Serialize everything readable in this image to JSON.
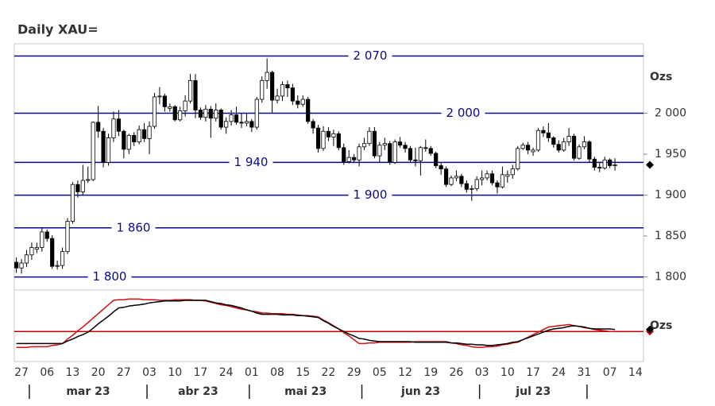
{
  "chart_data": [
    {
      "type": "candlestick",
      "title": "Daily XAU=",
      "y_unit": "Ozs",
      "categories": [
        null,
        "27",
        null,
        null,
        null,
        null,
        "06",
        null,
        null,
        null,
        null,
        "13",
        null,
        null,
        null,
        null,
        "20",
        null,
        null,
        null,
        null,
        "27",
        null,
        null,
        null,
        null,
        "03",
        null,
        null,
        null,
        null,
        "10",
        null,
        null,
        null,
        null,
        "17",
        null,
        null,
        null,
        null,
        "24",
        null,
        null,
        null,
        null,
        "01",
        null,
        null,
        null,
        null,
        "08",
        null,
        null,
        null,
        null,
        "15",
        null,
        null,
        null,
        null,
        "22",
        null,
        null,
        null,
        null,
        "29",
        null,
        null,
        null,
        null,
        "05",
        null,
        null,
        null,
        null,
        "12",
        null,
        null,
        null,
        null,
        "19",
        null,
        null,
        null,
        null,
        "26",
        null,
        null,
        null,
        null,
        "03",
        null,
        null,
        null,
        null,
        "10",
        null,
        null,
        null,
        null,
        "17",
        null,
        null,
        null,
        null,
        "24",
        null,
        null,
        null,
        null,
        "31",
        null,
        null,
        null,
        null,
        "07",
        null,
        null,
        null,
        null,
        "14"
      ],
      "months": [
        "mar 23",
        "abr 23",
        "mai 23",
        "jun 23",
        "jul 23"
      ],
      "open": [
        1818,
        1811,
        1817,
        1827,
        1834,
        1836,
        1855,
        1847,
        1813,
        1814,
        1831,
        1868,
        1913,
        1904,
        1918,
        1919,
        1989,
        1978,
        1940,
        1970,
        1993,
        1978,
        1956,
        1973,
        1965,
        1980,
        1969,
        1984,
        2020,
        2021,
        2006,
        2008,
        1992,
        2003,
        2015,
        2040,
        2004,
        1995,
        2005,
        1994,
        2004,
        1983,
        1990,
        1998,
        1989,
        1988,
        1990,
        1983,
        2017,
        2040,
        2050,
        2016,
        2021,
        2035,
        2031,
        2015,
        2011,
        2017,
        1990,
        1982,
        1957,
        1978,
        1971,
        1975,
        1958,
        1941,
        1946,
        1943,
        1959,
        1963,
        1978,
        1948,
        1961,
        1963,
        1940,
        1965,
        1961,
        1957,
        1943,
        1942,
        1958,
        1957,
        1951,
        1936,
        1932,
        1913,
        1921,
        1923,
        1914,
        1907,
        1908,
        1919,
        1921,
        1926,
        1915,
        1910,
        1923,
        1925,
        1932,
        1957,
        1961,
        1953,
        1955,
        1979,
        1976,
        1970,
        1962,
        1955,
        1965,
        1972,
        1945,
        1959,
        1965,
        1944,
        1934,
        1933,
        1943,
        1936,
        null,
        null,
        null,
        null
      ],
      "high": [
        1824,
        1822,
        1833,
        1842,
        1842,
        1860,
        1858,
        1851,
        1820,
        1836,
        1872,
        1916,
        1918,
        1937,
        1935,
        1990,
        2009,
        1982,
        1975,
        2002,
        2004,
        1980,
        1975,
        1977,
        1985,
        1988,
        1990,
        2025,
        2032,
        2024,
        2012,
        2010,
        2008,
        2022,
        2048,
        2048,
        2007,
        2010,
        2009,
        2012,
        2006,
        1995,
        2004,
        2008,
        2000,
        2000,
        1993,
        2020,
        2045,
        2067,
        2052,
        2030,
        2039,
        2040,
        2036,
        2022,
        2022,
        2020,
        1993,
        1986,
        1984,
        1983,
        1980,
        1978,
        1963,
        1955,
        1950,
        1963,
        1970,
        1983,
        1983,
        1965,
        1970,
        1966,
        1968,
        1971,
        1965,
        1960,
        1958,
        1960,
        1968,
        1960,
        1953,
        1940,
        1935,
        1924,
        1930,
        1926,
        1918,
        1912,
        1923,
        1930,
        1930,
        1930,
        1918,
        1935,
        1930,
        1937,
        1960,
        1964,
        1965,
        1958,
        1982,
        1984,
        1988,
        1972,
        1967,
        1970,
        1982,
        1975,
        1962,
        1972,
        1967,
        1947,
        1940,
        1947,
        1945,
        1945,
        null,
        null,
        null,
        null
      ],
      "low": [
        1805,
        1804,
        1812,
        1821,
        1829,
        1831,
        1843,
        1810,
        1809,
        1810,
        1828,
        1865,
        1897,
        1900,
        1915,
        1917,
        1970,
        1934,
        1936,
        1965,
        1972,
        1945,
        1950,
        1960,
        1962,
        1965,
        1950,
        1981,
        2011,
        2002,
        2002,
        1990,
        1990,
        1996,
        2012,
        1994,
        1992,
        1990,
        1970,
        1990,
        1980,
        1975,
        1985,
        1986,
        1982,
        1984,
        1977,
        1980,
        2013,
        2030,
        2000,
        2012,
        2015,
        2020,
        2010,
        2006,
        2008,
        1987,
        1975,
        1952,
        1954,
        1966,
        1960,
        1955,
        1937,
        1939,
        1940,
        1935,
        1955,
        1960,
        1945,
        1940,
        1955,
        1937,
        1938,
        1958,
        1952,
        1940,
        1935,
        1924,
        1953,
        1948,
        1933,
        1925,
        1910,
        1911,
        1917,
        1910,
        1903,
        1893,
        1905,
        1912,
        1918,
        1912,
        1902,
        1908,
        1915,
        1920,
        1930,
        1955,
        1950,
        1948,
        1953,
        1971,
        1965,
        1958,
        1952,
        1953,
        1960,
        1942,
        1943,
        1956,
        1940,
        1930,
        1928,
        1931,
        1933,
        1930,
        null,
        null,
        null,
        null
      ],
      "close": [
        1811,
        1817,
        1827,
        1836,
        1836,
        1855,
        1847,
        1813,
        1814,
        1831,
        1868,
        1913,
        1904,
        1918,
        1919,
        1989,
        1978,
        1940,
        1970,
        1993,
        1978,
        1956,
        1973,
        1965,
        1980,
        1969,
        1984,
        2020,
        2021,
        2008,
        2008,
        1992,
        2003,
        2015,
        2040,
        2004,
        1995,
        2005,
        1994,
        2004,
        1983,
        1990,
        1998,
        1989,
        1988,
        1990,
        1983,
        2017,
        2040,
        2050,
        2016,
        2021,
        2035,
        2031,
        2015,
        2011,
        2017,
        1990,
        1982,
        1957,
        1978,
        1971,
        1975,
        1958,
        1941,
        1946,
        1943,
        1959,
        1963,
        1978,
        1948,
        1961,
        1963,
        1940,
        1965,
        1961,
        1957,
        1943,
        1942,
        1958,
        1957,
        1951,
        1936,
        1932,
        1913,
        1921,
        1923,
        1914,
        1907,
        1908,
        1919,
        1921,
        1926,
        1915,
        1910,
        1925,
        1925,
        1932,
        1957,
        1961,
        1955,
        1955,
        1979,
        1976,
        1970,
        1962,
        1955,
        1965,
        1972,
        1945,
        1959,
        1965,
        1944,
        1934,
        1933,
        1943,
        1936,
        1937,
        null,
        null,
        null,
        null
      ],
      "up_color": "#ffffff",
      "down_color": "#000000",
      "ylim": [
        1786,
        2085
      ],
      "yticks": [
        {
          "value": 1800,
          "label": "1 800"
        },
        {
          "value": 1850,
          "label": "1 850"
        },
        {
          "value": 1900,
          "label": "1 900"
        },
        {
          "value": 1950,
          "label": "1 950"
        },
        {
          "value": 2000,
          "label": "2 000"
        }
      ],
      "levels": [
        {
          "value": 2070,
          "label": "2 070"
        },
        {
          "value": 2000,
          "label": "2 000"
        },
        {
          "value": 1940,
          "label": "1 940"
        },
        {
          "value": 1900,
          "label": "1 900"
        },
        {
          "value": 1860,
          "label": "1 860"
        },
        {
          "value": 1800,
          "label": "1 800"
        }
      ],
      "level_color": "#0a0a8c"
    },
    {
      "type": "line",
      "y_unit": "Ozs",
      "ylim": [
        0,
        100
      ],
      "reference": 41,
      "reference_color": "#c00000",
      "series": [
        {
          "color": "#d01010",
          "values": [
            16,
            16,
            16,
            17,
            17,
            17,
            17,
            19,
            20,
            22,
            29,
            35,
            42,
            48,
            55,
            62,
            69,
            76,
            83,
            90,
            91,
            91,
            92,
            92,
            92,
            91,
            91,
            91,
            90,
            90,
            90,
            91,
            91,
            91,
            91,
            90,
            90,
            89,
            87,
            85,
            83,
            82,
            80,
            78,
            76,
            75,
            73,
            72,
            70,
            70,
            69,
            69,
            69,
            68,
            68,
            67,
            66,
            66,
            65,
            64,
            59,
            55,
            50,
            45,
            39,
            34,
            28,
            22,
            22,
            23,
            23,
            24,
            24,
            24,
            24,
            24,
            24,
            24,
            25,
            25,
            25,
            25,
            25,
            25,
            25,
            23,
            22,
            20,
            19,
            17,
            16,
            16,
            17,
            17,
            18,
            20,
            21,
            23,
            24,
            28,
            32,
            36,
            40,
            44,
            48,
            49,
            50,
            51,
            52,
            50,
            49,
            47,
            46,
            44,
            43,
            42,
            41,
            41,
            null,
            null,
            null,
            null
          ]
        },
        {
          "color": "#000000",
          "values": [
            22,
            22,
            22,
            22,
            22,
            22,
            22,
            22,
            22,
            22,
            26,
            29,
            33,
            36,
            40,
            46,
            53,
            59,
            65,
            72,
            78,
            79,
            81,
            82,
            83,
            84,
            86,
            87,
            88,
            89,
            89,
            89,
            89,
            90,
            90,
            90,
            90,
            90,
            88,
            86,
            85,
            83,
            82,
            80,
            78,
            75,
            73,
            70,
            68,
            68,
            68,
            68,
            67,
            67,
            67,
            66,
            66,
            65,
            64,
            63,
            58,
            54,
            49,
            45,
            41,
            37,
            34,
            30,
            29,
            27,
            26,
            25,
            25,
            25,
            25,
            25,
            25,
            25,
            24,
            24,
            24,
            24,
            24,
            24,
            24,
            23,
            23,
            22,
            21,
            21,
            20,
            20,
            19,
            19,
            20,
            21,
            22,
            24,
            25,
            28,
            31,
            34,
            37,
            40,
            43,
            45,
            46,
            47,
            49,
            50,
            49,
            48,
            46,
            45,
            45,
            45,
            45,
            44,
            null,
            null,
            null,
            null
          ]
        }
      ]
    }
  ]
}
